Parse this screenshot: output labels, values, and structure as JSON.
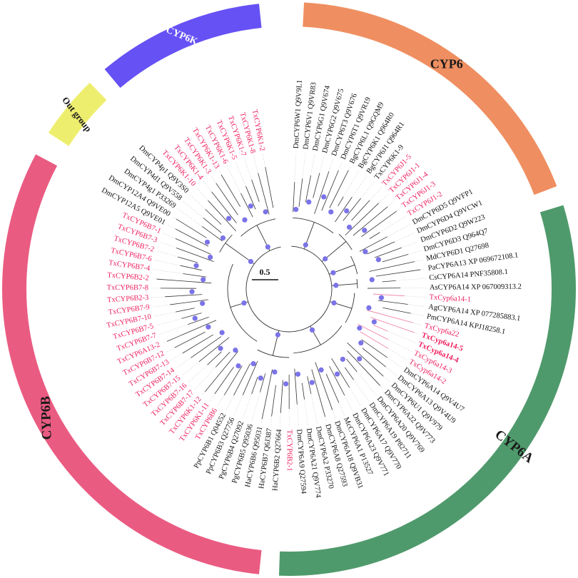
{
  "clades": [
    {
      "name": "CYP6",
      "label": "CYP6",
      "color": "#ef8f61",
      "label_color": "#1a1a1a"
    },
    {
      "name": "CYP6A",
      "label": "CYP6A",
      "color": "#4f9a6c",
      "label_color": "#1a1a1a"
    },
    {
      "name": "CYP6B",
      "label": "CYP6B",
      "color": "#ea5b82",
      "label_color": "#1a1a1a"
    },
    {
      "name": "Out group",
      "label": "Out group",
      "color": "#eeee6e",
      "label_color": "#1a1a1a"
    },
    {
      "name": "CYP6K",
      "label": "CYP6K",
      "color": "#6651f5",
      "label_color": "#ffffff"
    }
  ],
  "scale_bar": "0.5",
  "colors": {
    "highlight": "#ee1e5e",
    "normal": "#111111",
    "node": "#7b73e8"
  },
  "leaves": [
    {
      "text": "DmCYP6W1 Q9V9L1",
      "hl": false
    },
    {
      "text": "DmCYP6V1 Q9VR83",
      "hl": false
    },
    {
      "text": "DmCYP6G1 Q9V674",
      "hl": false
    },
    {
      "text": "DmCYP6G2 Q9V675",
      "hl": false
    },
    {
      "text": "DmCYP6T3 Q9V676",
      "hl": false
    },
    {
      "text": "DmCYP6T1 Q9VR19",
      "hl": false
    },
    {
      "text": "BgCYP6L1 Q9GQM9",
      "hl": false
    },
    {
      "text": "BgCYP6K1 Q964R0",
      "hl": false
    },
    {
      "text": "BgCYP6J1 Q964R1",
      "hl": false
    },
    {
      "text": "TxCYP6K1-9",
      "hl": false
    },
    {
      "text": "TxCYP6J1-5",
      "hl": true
    },
    {
      "text": "TxCYP6J1-1",
      "hl": true
    },
    {
      "text": "TxCYP6J1-4",
      "hl": true
    },
    {
      "text": "TxCYP6J1-3",
      "hl": true
    },
    {
      "text": "TxCYP6J1-2",
      "hl": true
    },
    {
      "text": "DmCYP6D5 Q9VFP1",
      "hl": false
    },
    {
      "text": "DmCYP6D4 Q9VCW1",
      "hl": false
    },
    {
      "text": "DmCYP6D2 Q9W223",
      "hl": false
    },
    {
      "text": "DmCYP6D3 Q964Q7",
      "hl": false
    },
    {
      "text": "MdCYP6D1 Q27698",
      "hl": false
    },
    {
      "text": "PaCYP6A13 XP 069672108.1",
      "hl": false
    },
    {
      "text": "CsCYP6A14 PNF35808.1",
      "hl": false
    },
    {
      "text": "AsCYP6A14 XP 067009313.2",
      "hl": false
    },
    {
      "text": "TxCyp6a14-1",
      "hl": true
    },
    {
      "text": "AgCYP6A14 XP 077285883.1",
      "hl": false
    },
    {
      "text": "PmCYP6A14 KPJ18258.1",
      "hl": false
    },
    {
      "text": "TxCyp6a22",
      "hl": true
    },
    {
      "text": "TxCyp6a14-5",
      "hl": true
    },
    {
      "text": "TxCyp6a14-4",
      "hl": true
    },
    {
      "text": "TxCyp6a14-3",
      "hl": true
    },
    {
      "text": "TxCyp6a14-2",
      "hl": true
    },
    {
      "text": "DmCYP6A14 Q9V4U7",
      "hl": false
    },
    {
      "text": "DmCYP6A13 Q9V4U9",
      "hl": false
    },
    {
      "text": "DmCYP6U1 Q9V979",
      "hl": false
    },
    {
      "text": "DmCYP6A22 Q9V773",
      "hl": false
    },
    {
      "text": "DmCYP6A20 Q9V769",
      "hl": false
    },
    {
      "text": "DmCYP6A19 P82711",
      "hl": false
    },
    {
      "text": "DmCYP6A17 Q9V770",
      "hl": false
    },
    {
      "text": "DmCYP6A23 Q9V771",
      "hl": false
    },
    {
      "text": "McCYP6A1 P13527",
      "hl": false
    },
    {
      "text": "DmCYP6A18 Q9VB31",
      "hl": false
    },
    {
      "text": "DmCYP6A8 Q27593",
      "hl": false
    },
    {
      "text": "DmCYP6A2 P33270",
      "hl": false
    },
    {
      "text": "DmCYP6A21 Q9V774",
      "hl": false
    },
    {
      "text": "DmCYP6A9 Q27594",
      "hl": false
    },
    {
      "text": "TxCYP6B2-1",
      "hl": true
    },
    {
      "text": "HaCYP6B2 Q27664",
      "hl": false
    },
    {
      "text": "HaCYP6B7 Q6J387",
      "hl": false
    },
    {
      "text": "HaCYP6B6 Q95031",
      "hl": false
    },
    {
      "text": "PgCYP6B5 Q95036",
      "hl": false
    },
    {
      "text": "PgCYP6B4 Q27092",
      "hl": false
    },
    {
      "text": "PpCYP6B3 Q27756",
      "hl": false
    },
    {
      "text": "PpCYP6B1 Q04552",
      "hl": false
    },
    {
      "text": "TxCYP6B6",
      "hl": true
    },
    {
      "text": "TxCYP6K1-11",
      "hl": true
    },
    {
      "text": "TxCYP6K1-12",
      "hl": true
    },
    {
      "text": "TxCYP6B7-17",
      "hl": true
    },
    {
      "text": "TxCYP6B7-16",
      "hl": true
    },
    {
      "text": "TxCYP6B7-15",
      "hl": true
    },
    {
      "text": "TxCYP6B7-14",
      "hl": true
    },
    {
      "text": "TxCYP6B7-13",
      "hl": true
    },
    {
      "text": "TxCYP6B7-12",
      "hl": true
    },
    {
      "text": "TxCYP6A13-2",
      "hl": true
    },
    {
      "text": "TxCYP6B7-7",
      "hl": true
    },
    {
      "text": "TxCYP6B7-5",
      "hl": true
    },
    {
      "text": "TxCYP6B7-10",
      "hl": true
    },
    {
      "text": "TxCYP6B7-9",
      "hl": true
    },
    {
      "text": "TxCYP6B2-3",
      "hl": true
    },
    {
      "text": "TxCYP6B7-8",
      "hl": true
    },
    {
      "text": "TxCYP6B2-2",
      "hl": true
    },
    {
      "text": "TxCYP6B7-4",
      "hl": true
    },
    {
      "text": "TxCYP6B7-6",
      "hl": true
    },
    {
      "text": "TxCYP6B7-2",
      "hl": true
    },
    {
      "text": "TxCYP6B7-3",
      "hl": true
    },
    {
      "text": "TxCYP6B7-1",
      "hl": true
    },
    {
      "text": "DmCYP12A5 Q9VE01",
      "hl": false
    },
    {
      "text": "DmCYP12A4 Q9VE00",
      "hl": false
    },
    {
      "text": "DmCYP4g1 P33269",
      "hl": false
    },
    {
      "text": "DmCYP4d1 Q9V558",
      "hl": false
    },
    {
      "text": "DmCYP4p1 Q9V3S0",
      "hl": false
    },
    {
      "text": "TxCYP6K1-10",
      "hl": true
    },
    {
      "text": "TxCYP6K1-4",
      "hl": true
    },
    {
      "text": "TxCYP6K1-3",
      "hl": true
    },
    {
      "text": "TxCYP6K1-13",
      "hl": true
    },
    {
      "text": "TxCYP6K1-6",
      "hl": true
    },
    {
      "text": "TxCYP6K1-5",
      "hl": true
    },
    {
      "text": "TxCYP6K1-7",
      "hl": true
    },
    {
      "text": "TxCYP6K1-8",
      "hl": true
    },
    {
      "text": "TxCYP6K1-2",
      "hl": true
    }
  ]
}
